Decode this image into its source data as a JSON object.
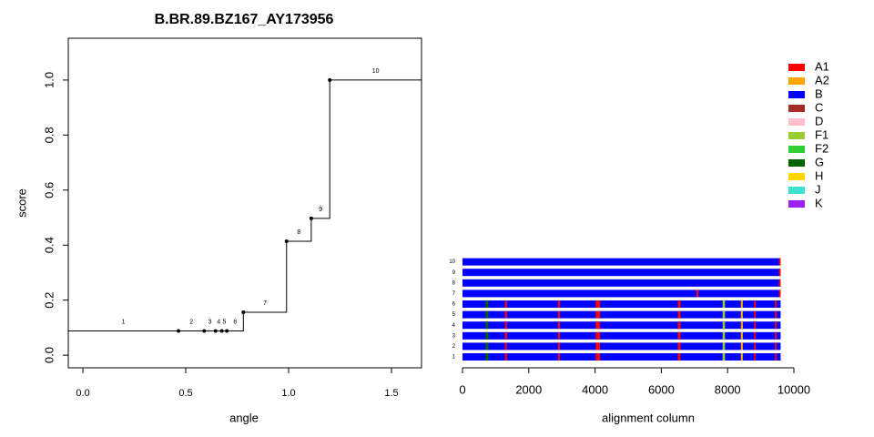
{
  "chart_data": [
    {
      "type": "step",
      "title": "B.BR.89.BZ167_AY173956",
      "xlabel": "angle",
      "ylabel": "score",
      "x": [
        0.465,
        0.59,
        0.645,
        0.675,
        0.7,
        0.78,
        0.99,
        1.11,
        1.2
      ],
      "values": [
        0.088,
        0.088,
        0.088,
        0.088,
        0.088,
        0.156,
        0.414,
        0.497,
        1.0
      ],
      "segment_labels": [
        "1",
        "2",
        "3",
        "4",
        "5",
        "6",
        "7",
        "8",
        "9",
        "10"
      ],
      "color": "#000000",
      "xlim": [
        -0.071,
        1.646
      ],
      "ylim": [
        -0.046,
        1.152
      ],
      "xticks": [
        {
          "value": 0,
          "label": "0.0"
        },
        {
          "value": 0.5,
          "label": "0.5"
        },
        {
          "value": 1,
          "label": "1.0"
        },
        {
          "value": 1.5,
          "label": "1.5"
        }
      ],
      "yticks": [
        {
          "value": 0,
          "label": "0.0"
        },
        {
          "value": 0.2,
          "label": "0.2"
        },
        {
          "value": 0.4,
          "label": "0.4"
        },
        {
          "value": 0.6,
          "label": "0.6"
        },
        {
          "value": 0.8,
          "label": "0.8"
        },
        {
          "value": 1,
          "label": "1.0"
        }
      ]
    },
    {
      "type": "strip",
      "xlabel": "alignment column",
      "xlim": [
        0,
        10000
      ],
      "xticks": [
        0,
        2000,
        4000,
        6000,
        8000,
        10000
      ],
      "legend": [
        {
          "name": "A1",
          "color": "#ff0000"
        },
        {
          "name": "A2",
          "color": "#ffa500"
        },
        {
          "name": "B",
          "color": "#0000ff"
        },
        {
          "name": "C",
          "color": "#a52a2a"
        },
        {
          "name": "D",
          "color": "#ffc0cb"
        },
        {
          "name": "F1",
          "color": "#9acd32"
        },
        {
          "name": "F2",
          "color": "#32cd32"
        },
        {
          "name": "G",
          "color": "#006400"
        },
        {
          "name": "H",
          "color": "#ffd700"
        },
        {
          "name": "J",
          "color": "#40e0d0"
        },
        {
          "name": "K",
          "color": "#a020f0"
        }
      ],
      "rows": [
        {
          "label": "1",
          "segments": [
            [
              0,
              9600,
              "B"
            ],
            [
              700,
              780,
              "G"
            ],
            [
              1280,
              1340,
              "A1"
            ],
            [
              2880,
              2940,
              "A1"
            ],
            [
              4020,
              4150,
              "A1"
            ],
            [
              6500,
              6580,
              "A1"
            ],
            [
              7850,
              7920,
              "F1"
            ],
            [
              8400,
              8460,
              "A2"
            ],
            [
              8800,
              8850,
              "A1"
            ],
            [
              9430,
              9480,
              "A1"
            ]
          ]
        },
        {
          "label": "2",
          "segments": [
            [
              0,
              9600,
              "B"
            ],
            [
              700,
              780,
              "G"
            ],
            [
              1280,
              1340,
              "A1"
            ],
            [
              2880,
              2940,
              "A1"
            ],
            [
              4020,
              4150,
              "A1"
            ],
            [
              6500,
              6580,
              "A1"
            ],
            [
              7850,
              7920,
              "F1"
            ],
            [
              8400,
              8460,
              "A2"
            ],
            [
              8800,
              8850,
              "A1"
            ],
            [
              9430,
              9480,
              "A1"
            ]
          ]
        },
        {
          "label": "3",
          "segments": [
            [
              0,
              9600,
              "B"
            ],
            [
              700,
              780,
              "G"
            ],
            [
              1280,
              1340,
              "A1"
            ],
            [
              2880,
              2940,
              "A1"
            ],
            [
              4020,
              4150,
              "A1"
            ],
            [
              6500,
              6580,
              "A1"
            ],
            [
              7850,
              7920,
              "F1"
            ],
            [
              8400,
              8460,
              "A2"
            ],
            [
              8800,
              8850,
              "A1"
            ],
            [
              9430,
              9480,
              "A1"
            ]
          ]
        },
        {
          "label": "4",
          "segments": [
            [
              0,
              9600,
              "B"
            ],
            [
              700,
              780,
              "G"
            ],
            [
              1280,
              1340,
              "A1"
            ],
            [
              2880,
              2940,
              "A1"
            ],
            [
              4020,
              4150,
              "A1"
            ],
            [
              6500,
              6580,
              "A1"
            ],
            [
              7850,
              7920,
              "F1"
            ],
            [
              8400,
              8460,
              "A2"
            ],
            [
              8800,
              8850,
              "A1"
            ],
            [
              9430,
              9480,
              "A1"
            ]
          ]
        },
        {
          "label": "5",
          "segments": [
            [
              0,
              9600,
              "B"
            ],
            [
              700,
              780,
              "G"
            ],
            [
              1280,
              1340,
              "A1"
            ],
            [
              2880,
              2940,
              "A1"
            ],
            [
              4020,
              4150,
              "A1"
            ],
            [
              6500,
              6580,
              "A1"
            ],
            [
              7850,
              7920,
              "F1"
            ],
            [
              8400,
              8460,
              "A2"
            ],
            [
              8800,
              8850,
              "A1"
            ],
            [
              9430,
              9480,
              "A1"
            ]
          ]
        },
        {
          "label": "6",
          "segments": [
            [
              0,
              9600,
              "B"
            ],
            [
              700,
              780,
              "G"
            ],
            [
              1280,
              1340,
              "A1"
            ],
            [
              2880,
              2940,
              "A1"
            ],
            [
              4020,
              4150,
              "A1"
            ],
            [
              6500,
              6580,
              "A1"
            ],
            [
              7850,
              7920,
              "F1"
            ],
            [
              8400,
              8460,
              "A2"
            ],
            [
              8800,
              8850,
              "A1"
            ],
            [
              9430,
              9480,
              "A1"
            ]
          ]
        },
        {
          "label": "7",
          "segments": [
            [
              0,
              9600,
              "B"
            ],
            [
              7060,
              7120,
              "A1"
            ],
            [
              9550,
              9600,
              "A1"
            ]
          ]
        },
        {
          "label": "8",
          "segments": [
            [
              0,
              9600,
              "B"
            ],
            [
              9550,
              9600,
              "A1"
            ]
          ]
        },
        {
          "label": "9",
          "segments": [
            [
              0,
              9600,
              "B"
            ],
            [
              9550,
              9600,
              "A1"
            ]
          ]
        },
        {
          "label": "10",
          "segments": [
            [
              0,
              9600,
              "B"
            ],
            [
              9550,
              9600,
              "A1"
            ]
          ]
        }
      ]
    }
  ]
}
